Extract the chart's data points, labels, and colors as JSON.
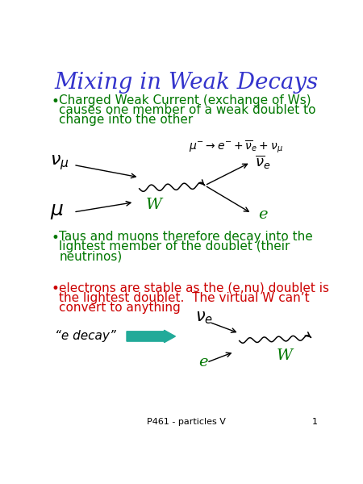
{
  "title": "Mixing in Weak Decays",
  "title_color": "#3333cc",
  "title_fontsize": 20,
  "bg_color": "#ffffff",
  "green_color": "#007700",
  "red_color": "#cc0000",
  "black": "#000000",
  "bullet1_text_lines": [
    "Charged Weak Current (exchange of Ws)",
    "causes one member of a weak doublet to",
    "change into the other"
  ],
  "bullet2_text_lines": [
    "Taus and muons therefore decay into the",
    "lightest member of the doublet (their",
    "neutrinos)"
  ],
  "bullet3_text_lines": [
    "electrons are stable as the (e,nu) doublet is",
    "the lightest doublet.  The virtual W can’t",
    "convert to anything"
  ],
  "footer": "P461 - particles V",
  "page_num": "1",
  "fontsize_body": 11,
  "fontsize_label": 16,
  "fontsize_small_label": 13
}
